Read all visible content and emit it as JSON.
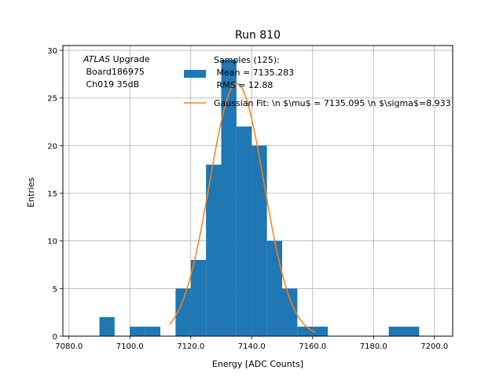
{
  "chart_data": {
    "type": "bar",
    "title": "Run 810",
    "xlabel": "Energy [ADC Counts]",
    "ylabel": "Entries",
    "xlim": [
      7078,
      7206
    ],
    "ylim": [
      0,
      30.5
    ],
    "grid": true,
    "xticks": [
      7080,
      7100,
      7120,
      7140,
      7160,
      7180,
      7200
    ],
    "xtick_labels": [
      "7080.0",
      "7100.0",
      "7120.0",
      "7140.0",
      "7160.0",
      "7180.0",
      "7200.0"
    ],
    "yticks": [
      0,
      5,
      10,
      15,
      20,
      25,
      30
    ],
    "ytick_labels": [
      "0",
      "5",
      "10",
      "15",
      "20",
      "25",
      "30"
    ],
    "bin_width": 5,
    "bins": [
      {
        "x0": 7090,
        "value": 2
      },
      {
        "x0": 7100,
        "value": 1
      },
      {
        "x0": 7105,
        "value": 1
      },
      {
        "x0": 7115,
        "value": 5
      },
      {
        "x0": 7120,
        "value": 8
      },
      {
        "x0": 7125,
        "value": 18
      },
      {
        "x0": 7130,
        "value": 29
      },
      {
        "x0": 7135,
        "value": 22
      },
      {
        "x0": 7140,
        "value": 20
      },
      {
        "x0": 7145,
        "value": 10
      },
      {
        "x0": 7150,
        "value": 5
      },
      {
        "x0": 7155,
        "value": 1
      },
      {
        "x0": 7160,
        "value": 1
      },
      {
        "x0": 7185,
        "value": 1
      },
      {
        "x0": 7190,
        "value": 1
      }
    ],
    "fit": {
      "mu": 7135.095,
      "sigma": 8.933,
      "amplitude": 26.5,
      "range": [
        7113,
        7161
      ]
    },
    "colors": {
      "bars": "#1f77b4",
      "fit": "#ff7f0e",
      "grid": "#b0b0b0"
    },
    "legend": {
      "placement": "top-center",
      "samples_lines": [
        "Samples (125):",
        " Mean = 7135.283",
        " RMS = 12.88"
      ],
      "fit_label": "Gaussian Fit: \\n $\\mu$ = 7135.095 \\n $\\sigma$=8.933"
    },
    "annotation": {
      "atlas": "ATLAS",
      "upgrade": " Upgrade",
      "lines": [
        " Board186975",
        " Ch019 35dB"
      ]
    }
  }
}
